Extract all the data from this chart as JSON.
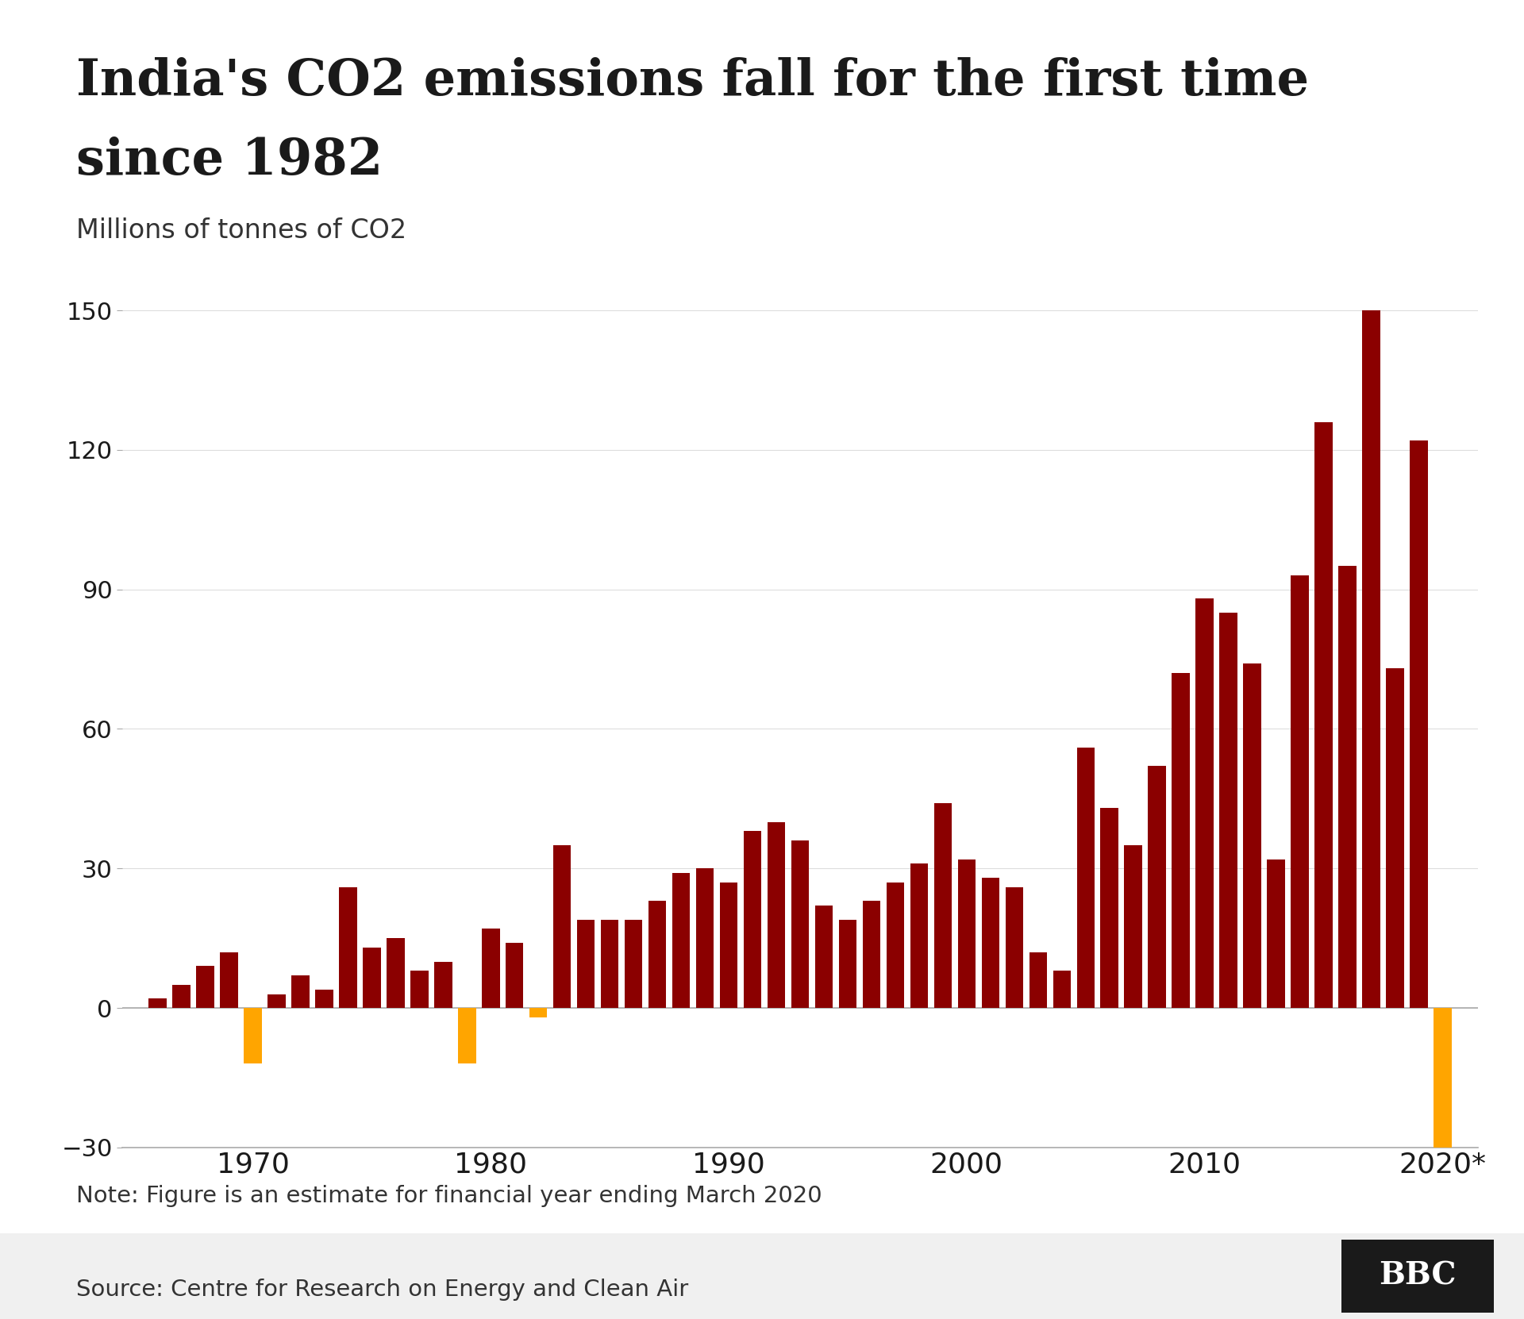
{
  "title_line1": "India's CO2 emissions fall for the first time",
  "title_line2": "since 1982",
  "ylabel": "Millions of tonnes of CO2",
  "note": "Note: Figure is an estimate for financial year ending March 2020",
  "source": "Source: Centre for Research on Energy and Clean Air",
  "background_color": "#ffffff",
  "title_color": "#1a1a1a",
  "bar_color_dark": "#8B0000",
  "bar_color_orange": "#FFA500",
  "ylim": [
    -30,
    160
  ],
  "yticks": [
    -30,
    0,
    30,
    60,
    90,
    120,
    150
  ],
  "years": [
    1966,
    1967,
    1968,
    1969,
    1970,
    1971,
    1972,
    1973,
    1974,
    1975,
    1976,
    1977,
    1978,
    1979,
    1980,
    1981,
    1982,
    1983,
    1984,
    1985,
    1986,
    1987,
    1988,
    1989,
    1990,
    1991,
    1992,
    1993,
    1994,
    1995,
    1996,
    1997,
    1998,
    1999,
    2000,
    2001,
    2002,
    2003,
    2004,
    2005,
    2006,
    2007,
    2008,
    2009,
    2010,
    2011,
    2012,
    2013,
    2014,
    2015,
    2016,
    2017,
    2018,
    2019,
    2020
  ],
  "values": [
    2,
    5,
    9,
    12,
    -12,
    3,
    7,
    4,
    26,
    13,
    15,
    8,
    10,
    -12,
    17,
    14,
    -2,
    35,
    19,
    19,
    19,
    23,
    29,
    30,
    27,
    38,
    40,
    36,
    22,
    19,
    23,
    27,
    31,
    44,
    32,
    28,
    26,
    12,
    8,
    56,
    43,
    35,
    52,
    72,
    88,
    85,
    74,
    32,
    93,
    126,
    95,
    150,
    73,
    122,
    -30
  ],
  "xtick_years": [
    1970,
    1980,
    1990,
    2000,
    2010,
    2020
  ],
  "xtick_labels": [
    "1970",
    "1980",
    "1990",
    "2000",
    "2010",
    "2020*"
  ]
}
